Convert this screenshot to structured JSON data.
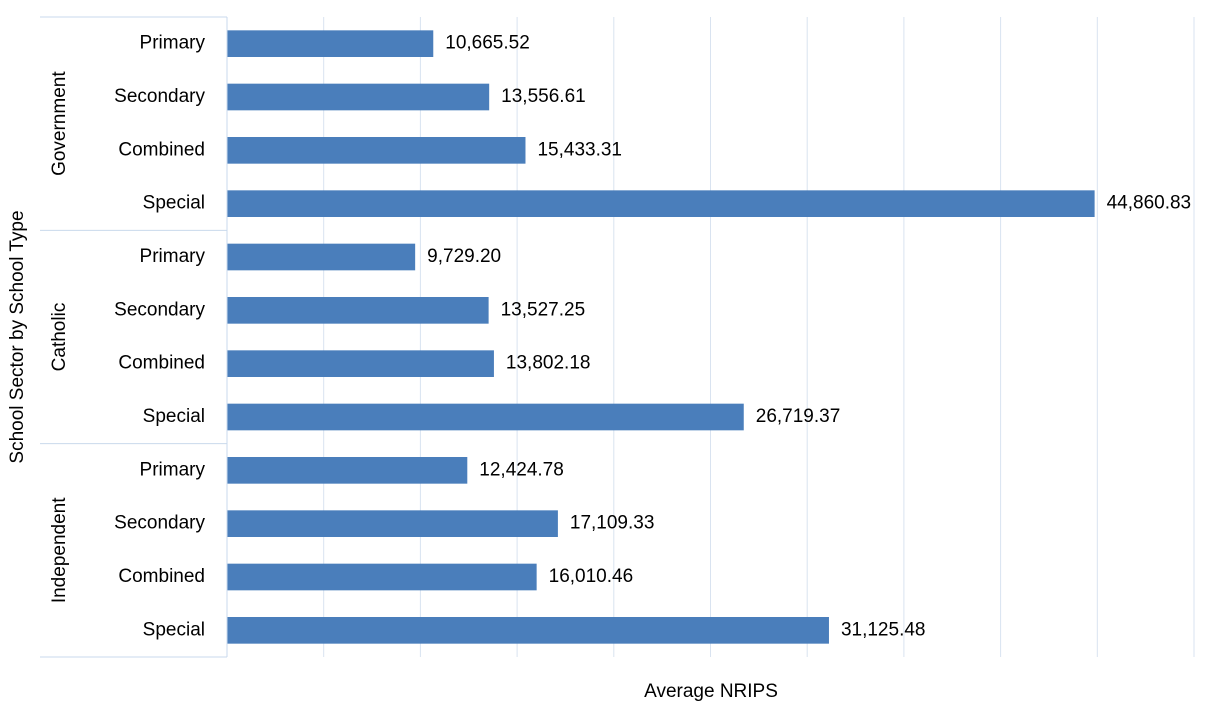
{
  "chart_data": {
    "type": "bar",
    "orientation": "horizontal",
    "x_label": "Average NRIPS",
    "y_label": "School Sector by School Type",
    "color": "#4a7ebb",
    "grid": true,
    "xlim": [
      0,
      50000
    ],
    "xticks": [
      0,
      5000,
      10000,
      15000,
      20000,
      25000,
      30000,
      35000,
      40000,
      45000,
      50000
    ],
    "groups": [
      {
        "name": "Government",
        "categories": [
          "Primary",
          "Secondary",
          "Combined",
          "Special"
        ],
        "values": [
          10665.52,
          13556.61,
          15433.31,
          44860.83
        ],
        "value_labels": [
          "10,665.52",
          "13,556.61",
          "15,433.31",
          "44,860.83"
        ]
      },
      {
        "name": "Catholic",
        "categories": [
          "Primary",
          "Secondary",
          "Combined",
          "Special"
        ],
        "values": [
          9729.2,
          13527.25,
          13802.18,
          26719.37
        ],
        "value_labels": [
          "9,729.20",
          "13,527.25",
          "13,802.18",
          "26,719.37"
        ]
      },
      {
        "name": "Independent",
        "categories": [
          "Primary",
          "Secondary",
          "Combined",
          "Special"
        ],
        "values": [
          12424.78,
          17109.33,
          16010.46,
          31125.48
        ],
        "value_labels": [
          "12,424.78",
          "17,109.33",
          "16,010.46",
          "31,125.48"
        ]
      }
    ]
  }
}
